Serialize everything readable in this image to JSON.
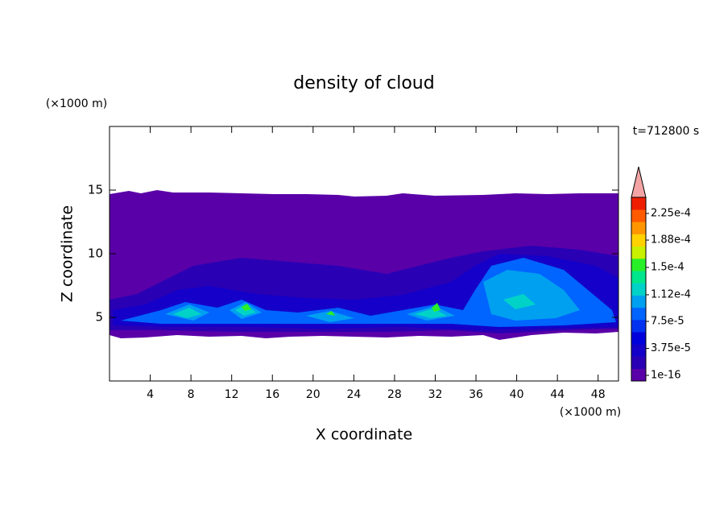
{
  "chart_data": {
    "type": "contour",
    "title": "density of cloud",
    "xlabel": "X coordinate",
    "ylabel": "Z coordinate",
    "x_unit": "(×1000 m)",
    "y_unit": "(×1000 m)",
    "annotation": "t=712800 s",
    "xlim": [
      0,
      50
    ],
    "ylim": [
      0,
      20
    ],
    "xticks": [
      4,
      8,
      12,
      16,
      20,
      24,
      28,
      32,
      36,
      40,
      44,
      48
    ],
    "yticks": [
      5,
      10,
      15
    ],
    "colorbar": {
      "colors": [
        "#5a00a8",
        "#2a00b4",
        "#1400c8",
        "#0000dc",
        "#0032f0",
        "#0064ff",
        "#00a0f0",
        "#00d2c8",
        "#00e68c",
        "#28f028",
        "#c8f000",
        "#ffd200",
        "#ff9600",
        "#ff5a00",
        "#f01e00"
      ],
      "extend_color": "#f4a4a4",
      "ticks": [
        {
          "value": 1e-16,
          "label": "1e-16"
        },
        {
          "value": 3.75e-05,
          "label": "3.75e-5"
        },
        {
          "value": 7.5e-05,
          "label": "7.5e-5"
        },
        {
          "value": 0.000112,
          "label": "1.12e-4"
        },
        {
          "value": 0.00015,
          "label": "1.5e-4"
        },
        {
          "value": 0.000188,
          "label": "1.88e-4"
        },
        {
          "value": 0.000225,
          "label": "2.25e-4"
        }
      ]
    }
  }
}
